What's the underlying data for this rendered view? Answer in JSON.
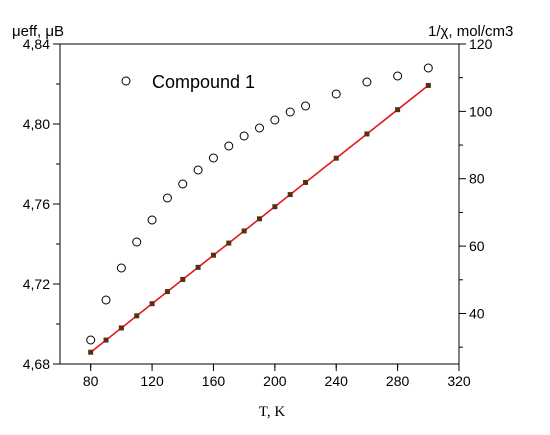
{
  "chart_data": {
    "type": "scatter",
    "xlabel": "T, K",
    "ylabel_left": "μeff, μB",
    "ylabel_right": "1/χ, mol/cm3",
    "xlim": [
      60,
      320
    ],
    "ylim_left": [
      4.68,
      4.84
    ],
    "ylim_right": [
      25,
      120
    ],
    "x_ticks": [
      "80",
      "120",
      "160",
      "200",
      "240",
      "280",
      "320"
    ],
    "x_tick_values": [
      80,
      120,
      160,
      200,
      240,
      280,
      320
    ],
    "y_left_ticks": [
      "4,68",
      "4,72",
      "4,76",
      "4,80",
      "4,84"
    ],
    "y_left_tick_values": [
      4.68,
      4.72,
      4.76,
      4.8,
      4.84
    ],
    "y_right_ticks": [
      "40",
      "60",
      "80",
      "100",
      "120"
    ],
    "y_right_tick_values": [
      40,
      60,
      80,
      100,
      120
    ],
    "grid": false,
    "legend": {
      "label": "Compound 1",
      "marker": "open-circle",
      "placement": "top-left"
    },
    "series": [
      {
        "name": "Compound 1",
        "axis": "left",
        "marker": "open-circle",
        "x": [
          80,
          90,
          100,
          110,
          120,
          130,
          140,
          150,
          160,
          170,
          180,
          190,
          200,
          210,
          220,
          240,
          260,
          280,
          300
        ],
        "y": [
          4.692,
          4.712,
          4.728,
          4.741,
          4.752,
          4.763,
          4.77,
          4.777,
          4.783,
          4.789,
          4.794,
          4.798,
          4.802,
          4.806,
          4.809,
          4.815,
          4.821,
          4.824,
          4.828
        ]
      },
      {
        "axis": "right",
        "marker": "filled-square",
        "color": "#5a2d0c",
        "x": [
          80,
          90,
          100,
          110,
          120,
          130,
          140,
          150,
          160,
          170,
          180,
          190,
          200,
          210,
          220,
          240,
          260,
          280,
          300
        ],
        "y": [
          28.5,
          32.1,
          35.7,
          39.3,
          42.9,
          46.5,
          50.1,
          53.7,
          57.3,
          60.9,
          64.5,
          68.1,
          71.7,
          75.3,
          78.9,
          86.1,
          93.3,
          100.5,
          107.7
        ]
      },
      {
        "axis": "right",
        "type": "line",
        "color": "#e8141b",
        "x": [
          80,
          300
        ],
        "y": [
          28.5,
          107.7
        ]
      }
    ]
  }
}
